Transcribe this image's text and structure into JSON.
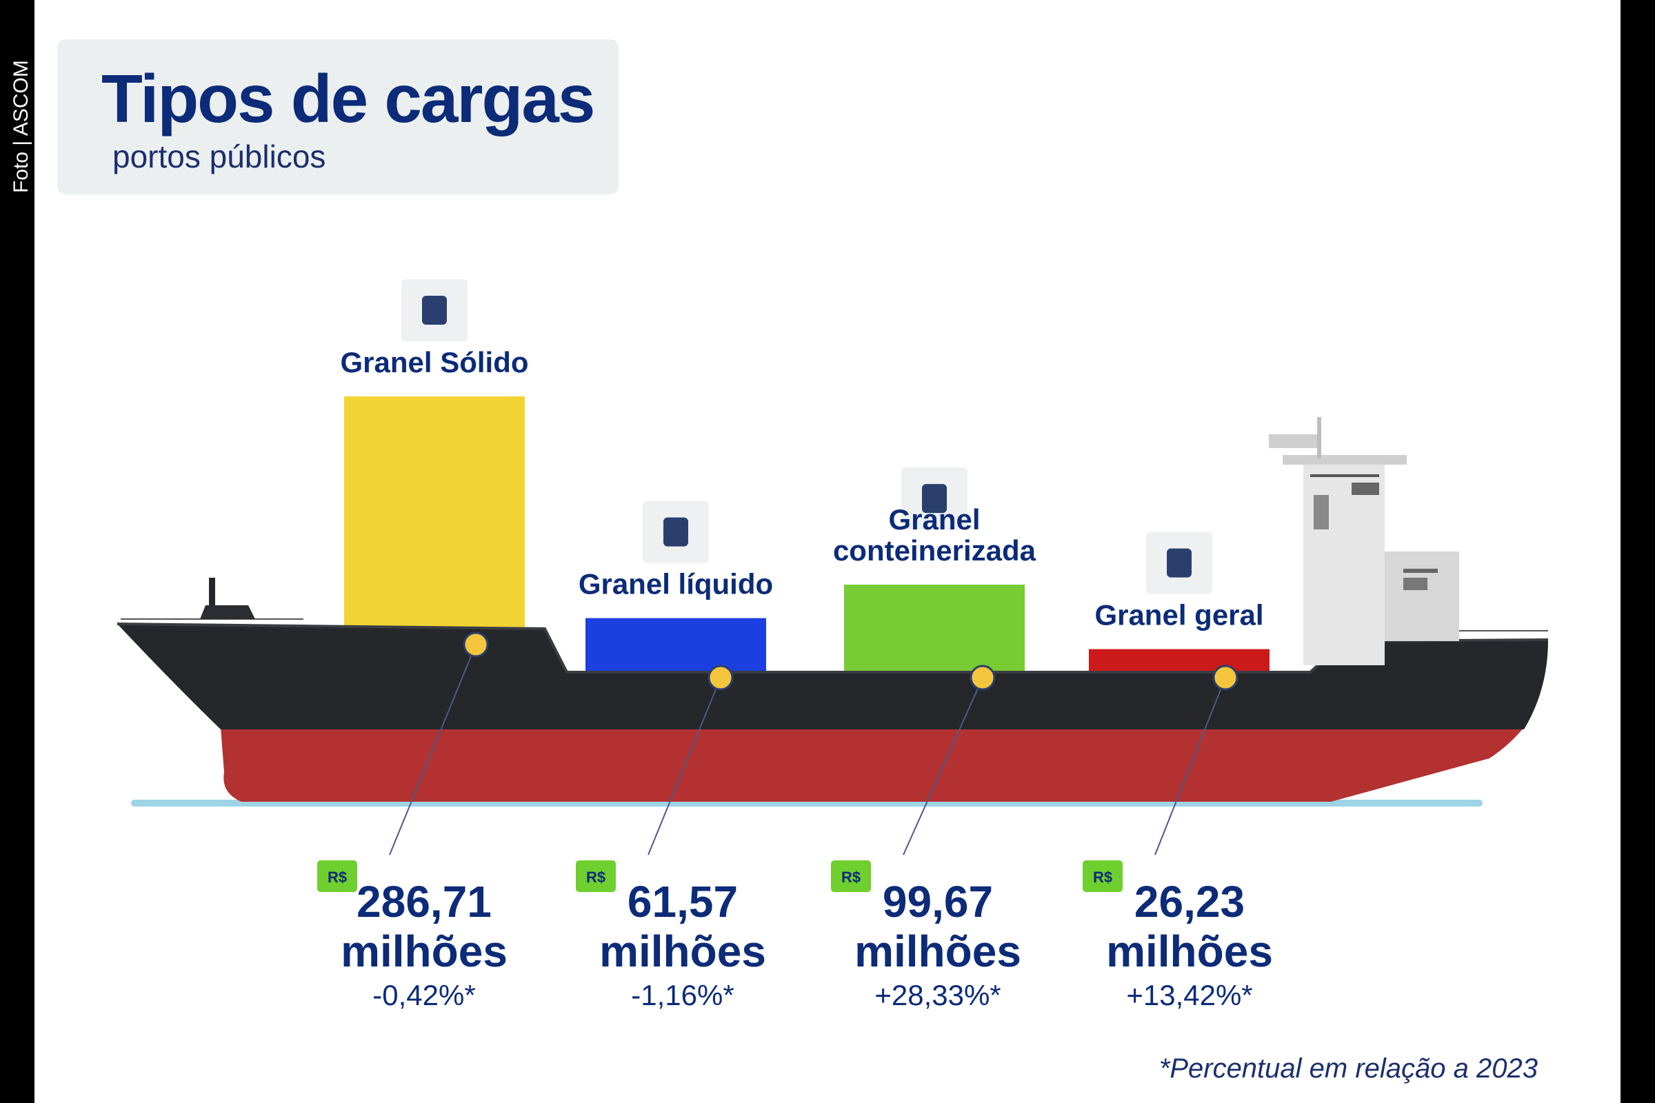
{
  "photo_credit": "Foto | ASCOM",
  "title": "Tipos de cargas",
  "subtitle": "portos públicos",
  "footnote": "*Percentual em relação a 2023",
  "colors": {
    "title": "#0c2b78",
    "hull_black": "#25272b",
    "hull_red": "#b33131",
    "badge_green": "#6fcf2e",
    "marker_yellow": "#f5c63d"
  },
  "chart_data": {
    "type": "bar",
    "categories": [
      "Granel Sólido",
      "Granel líquido",
      "Granel conteinerizada",
      "Granel geral"
    ],
    "values": [
      286.71,
      61.57,
      99.67,
      26.23
    ],
    "unit": "R$ milhões",
    "currency_badge": "R$",
    "value_suffix": "milhões",
    "value_labels": [
      "286,71",
      "61,57",
      "99,67",
      "26,23"
    ],
    "change_labels": [
      "-0,42%*",
      "-1,16%*",
      "+28,33%*",
      "+13,42%*"
    ],
    "bar_colors": [
      "#f2d333",
      "#1b3fe0",
      "#77cc33",
      "#cc1a1a"
    ],
    "icons": [
      "grain-sack-icon",
      "liquid-drops-icon",
      "container-crane-icon",
      "package-box-icon"
    ]
  }
}
